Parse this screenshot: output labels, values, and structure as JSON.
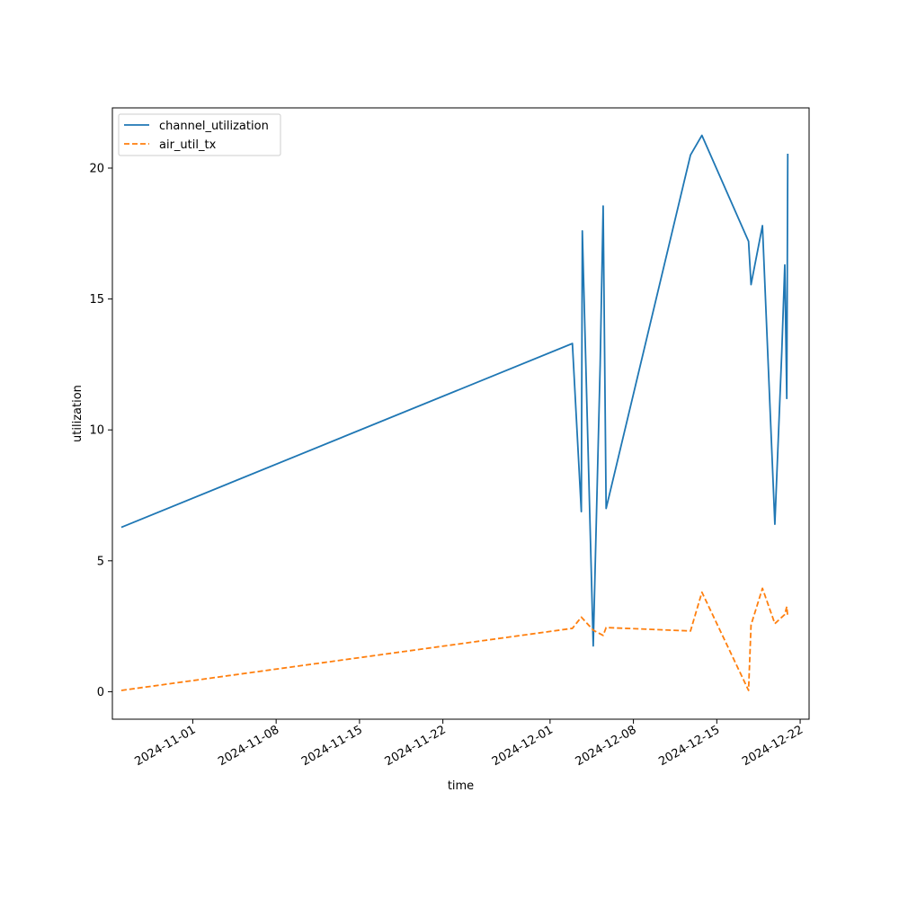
{
  "chart_data": {
    "type": "line",
    "title": "",
    "xlabel": "time",
    "ylabel": "utilization",
    "x_type": "date",
    "xlim": [
      "2024-10-25T06:00",
      "2024-12-22T18:00"
    ],
    "ylim": [
      -1.05,
      22.3
    ],
    "x_ticks": [
      {
        "value": "2024-11-01",
        "label": "2024-11-01"
      },
      {
        "value": "2024-11-08",
        "label": "2024-11-08"
      },
      {
        "value": "2024-11-15",
        "label": "2024-11-15"
      },
      {
        "value": "2024-11-22",
        "label": "2024-11-22"
      },
      {
        "value": "2024-12-01",
        "label": "2024-12-01"
      },
      {
        "value": "2024-12-08",
        "label": "2024-12-08"
      },
      {
        "value": "2024-12-15",
        "label": "2024-12-15"
      },
      {
        "value": "2024-12-22",
        "label": "2024-12-22"
      }
    ],
    "y_ticks": [
      {
        "value": 0,
        "label": "0"
      },
      {
        "value": 5,
        "label": "5"
      },
      {
        "value": 10,
        "label": "10"
      },
      {
        "value": 15,
        "label": "15"
      },
      {
        "value": 20,
        "label": "20"
      }
    ],
    "grid": false,
    "legend_position": "top-left",
    "series": [
      {
        "name": "channel_utilization",
        "color": "#1f77b4",
        "style": "solid",
        "points": [
          {
            "x": "2024-10-26T00:00",
            "y": 6.28
          },
          {
            "x": "2024-12-02T21:00",
            "y": 13.3
          },
          {
            "x": "2024-12-03T15:00",
            "y": 6.88
          },
          {
            "x": "2024-12-03T17:00",
            "y": 17.6
          },
          {
            "x": "2024-12-04T15:00",
            "y": 1.75
          },
          {
            "x": "2024-12-05T05:00",
            "y": 12.5
          },
          {
            "x": "2024-12-05T11:00",
            "y": 18.55
          },
          {
            "x": "2024-12-05T17:00",
            "y": 7.0
          },
          {
            "x": "2024-12-12T19:00",
            "y": 20.5
          },
          {
            "x": "2024-12-13T18:00",
            "y": 21.25
          },
          {
            "x": "2024-12-17T16:00",
            "y": 17.2
          },
          {
            "x": "2024-12-17T21:00",
            "y": 15.55
          },
          {
            "x": "2024-12-18T20:00",
            "y": 17.8
          },
          {
            "x": "2024-12-19T21:00",
            "y": 6.4
          },
          {
            "x": "2024-12-20T11:00",
            "y": 13.0
          },
          {
            "x": "2024-12-20T17:00",
            "y": 16.3
          },
          {
            "x": "2024-12-20T21:00",
            "y": 11.2
          },
          {
            "x": "2024-12-20T23:00",
            "y": 20.55
          }
        ]
      },
      {
        "name": "air_util_tx",
        "color": "#ff7f0e",
        "style": "dashed",
        "points": [
          {
            "x": "2024-10-26T00:00",
            "y": 0.05
          },
          {
            "x": "2024-12-02T21:00",
            "y": 2.42
          },
          {
            "x": "2024-12-03T15:00",
            "y": 2.85
          },
          {
            "x": "2024-12-04T15:00",
            "y": 2.35
          },
          {
            "x": "2024-12-05T11:00",
            "y": 2.15
          },
          {
            "x": "2024-12-05T17:00",
            "y": 2.45
          },
          {
            "x": "2024-12-12T19:00",
            "y": 2.32
          },
          {
            "x": "2024-12-13T18:00",
            "y": 3.8
          },
          {
            "x": "2024-12-17T16:00",
            "y": 0.05
          },
          {
            "x": "2024-12-17T21:00",
            "y": 2.55
          },
          {
            "x": "2024-12-18T20:00",
            "y": 3.95
          },
          {
            "x": "2024-12-19T21:00",
            "y": 2.6
          },
          {
            "x": "2024-12-20T17:00",
            "y": 2.95
          },
          {
            "x": "2024-12-20T21:00",
            "y": 3.25
          },
          {
            "x": "2024-12-20T23:00",
            "y": 2.85
          }
        ]
      }
    ]
  }
}
